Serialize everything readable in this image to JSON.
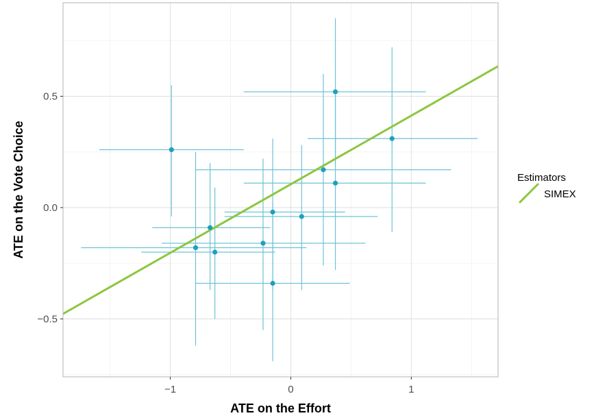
{
  "chart_data": {
    "type": "scatter",
    "xlabel": "ATE on the Effort",
    "ylabel": "ATE on the Vote Choice",
    "xlim": [
      -1.89,
      1.72
    ],
    "ylim": [
      -0.76,
      0.92
    ],
    "x_ticks": [
      {
        "value": -1,
        "label": "−1"
      },
      {
        "value": 0,
        "label": "0"
      },
      {
        "value": 1,
        "label": "1"
      }
    ],
    "y_ticks": [
      {
        "value": -0.5,
        "label": "−0.5"
      },
      {
        "value": 0.0,
        "label": "0.0"
      },
      {
        "value": 0.5,
        "label": "0.5"
      }
    ],
    "grid": true,
    "points": [
      {
        "x": -0.99,
        "y": 0.26,
        "x_low": -1.59,
        "x_high": -0.39,
        "y_low": -0.04,
        "y_high": 0.55
      },
      {
        "x": 0.37,
        "y": 0.52,
        "x_low": -0.39,
        "x_high": 1.12,
        "y_low": 0.19,
        "y_high": 0.85
      },
      {
        "x": 0.84,
        "y": 0.31,
        "x_low": 0.14,
        "x_high": 1.55,
        "y_low": -0.11,
        "y_high": 0.72
      },
      {
        "x": 0.27,
        "y": 0.17,
        "x_low": -0.79,
        "x_high": 1.33,
        "y_low": -0.26,
        "y_high": 0.6
      },
      {
        "x": 0.37,
        "y": 0.11,
        "x_low": -0.39,
        "x_high": 1.12,
        "y_low": -0.28,
        "y_high": 0.51
      },
      {
        "x": -0.15,
        "y": -0.02,
        "x_low": -0.55,
        "x_high": 0.45,
        "y_low": -0.37,
        "y_high": 0.31
      },
      {
        "x": 0.09,
        "y": -0.04,
        "x_low": -0.55,
        "x_high": 0.72,
        "y_low": -0.37,
        "y_high": 0.28
      },
      {
        "x": -0.67,
        "y": -0.09,
        "x_low": -1.15,
        "x_high": -0.17,
        "y_low": -0.37,
        "y_high": 0.2
      },
      {
        "x": -0.23,
        "y": -0.16,
        "x_low": -1.07,
        "x_high": 0.62,
        "y_low": -0.55,
        "y_high": 0.22
      },
      {
        "x": -0.79,
        "y": -0.18,
        "x_low": -1.74,
        "x_high": 0.13,
        "y_low": -0.62,
        "y_high": 0.25
      },
      {
        "x": -0.63,
        "y": -0.2,
        "x_low": -1.24,
        "x_high": -0.13,
        "y_low": -0.5,
        "y_high": 0.09
      },
      {
        "x": -0.15,
        "y": -0.34,
        "x_low": -0.79,
        "x_high": 0.49,
        "y_low": -0.69,
        "y_high": 0.02
      }
    ],
    "point_color": "#1f9fbf",
    "errorbar_color": "#6cc3d5",
    "series": [
      {
        "name": "SIMEX",
        "type": "line",
        "intercept": 0.105,
        "slope": 0.308,
        "color": "#8cc63f"
      }
    ],
    "legend": {
      "title": "Estimators",
      "position": "right"
    }
  }
}
